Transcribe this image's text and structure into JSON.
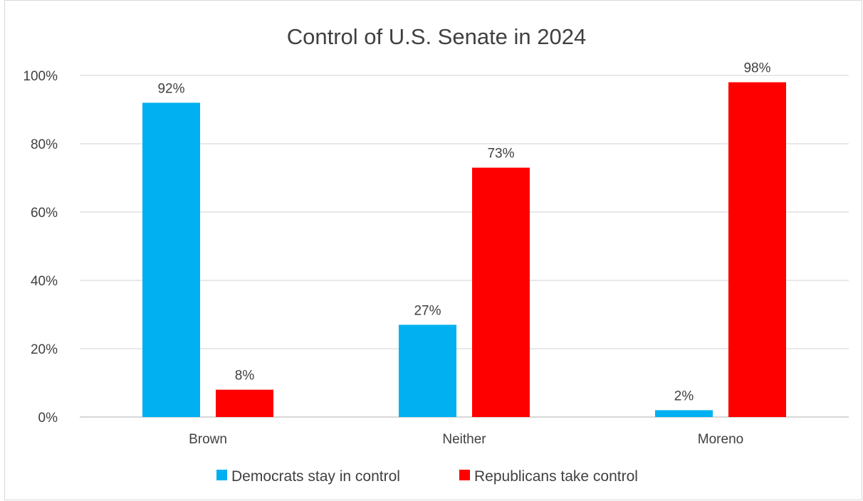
{
  "chart_data": {
    "type": "bar",
    "title": "Control of U.S. Senate in 2024",
    "categories": [
      "Brown",
      "Neither",
      "Moreno"
    ],
    "series": [
      {
        "name": "Democrats stay in control",
        "color": "#00b0f0",
        "values": [
          92,
          27,
          2
        ],
        "labels": [
          "92%",
          "27%",
          "2%"
        ]
      },
      {
        "name": "Republicans take control",
        "color": "#ff0000",
        "values": [
          8,
          73,
          98
        ],
        "labels": [
          "8%",
          "73%",
          "98%"
        ]
      }
    ],
    "ylim": [
      0,
      100
    ],
    "yticks": [
      0,
      20,
      40,
      60,
      80,
      100
    ],
    "ytick_labels": [
      "0%",
      "20%",
      "40%",
      "60%",
      "80%",
      "100%"
    ],
    "grid": true,
    "legend": "bottom"
  }
}
